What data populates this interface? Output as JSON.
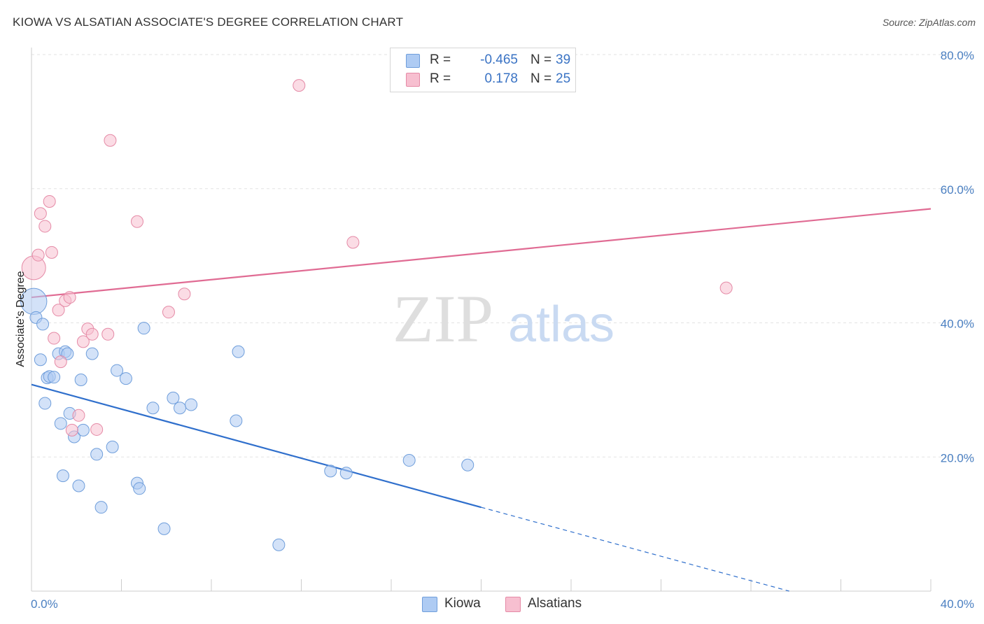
{
  "chart_data": {
    "type": "scatter",
    "title": "KIOWA VS ALSATIAN ASSOCIATE'S DEGREE CORRELATION CHART",
    "source": "Source: ZipAtlas.com",
    "watermark": {
      "zip": "ZIP",
      "atlas": "atlas"
    },
    "xlabel": "",
    "ylabel": "Associate's Degree",
    "xlim": [
      0,
      40
    ],
    "ylim": [
      0,
      80
    ],
    "x_tick_labels": [
      "0.0%",
      "40.0%"
    ],
    "y_ticks": [
      20,
      40,
      60,
      80
    ],
    "y_tick_labels": [
      "20.0%",
      "40.0%",
      "60.0%",
      "80.0%"
    ],
    "grid": true,
    "legend": {
      "position": "top-center",
      "entries": [
        {
          "r_label": "R =",
          "r_value": "-0.465",
          "n_label": "N =",
          "n_value": "39",
          "color": "#aecbf3"
        },
        {
          "r_label": "R =",
          "r_value": "0.178",
          "n_label": "N =",
          "n_value": "25",
          "color": "#f7bfd0"
        }
      ]
    },
    "series": [
      {
        "name": "Kiowa",
        "color": "#aecbf3",
        "stroke": "#6f9edb",
        "trend_color": "#2f6fcc",
        "trend": {
          "x0": 0,
          "y0": 30.8,
          "x1": 20,
          "y1": 12.5,
          "dash_to_x": 33.7,
          "dash_to_y": 0
        },
        "points": [
          [
            0.1,
            43.2,
            22
          ],
          [
            0.2,
            40.8,
            10
          ],
          [
            0.4,
            34.5,
            10
          ],
          [
            0.5,
            39.8,
            10
          ],
          [
            0.6,
            28.0,
            10
          ],
          [
            0.7,
            31.8,
            10
          ],
          [
            0.8,
            32.0,
            10
          ],
          [
            1.0,
            31.9,
            10
          ],
          [
            1.2,
            35.4,
            10
          ],
          [
            1.3,
            25.0,
            10
          ],
          [
            1.4,
            17.2,
            10
          ],
          [
            1.5,
            35.7,
            10
          ],
          [
            1.6,
            35.4,
            10
          ],
          [
            1.7,
            26.5,
            10
          ],
          [
            1.9,
            23.0,
            10
          ],
          [
            2.1,
            15.7,
            10
          ],
          [
            2.2,
            31.5,
            10
          ],
          [
            2.3,
            24.0,
            10
          ],
          [
            2.7,
            35.4,
            10
          ],
          [
            2.9,
            20.4,
            10
          ],
          [
            3.1,
            12.5,
            10
          ],
          [
            3.6,
            21.5,
            10
          ],
          [
            3.8,
            32.9,
            10
          ],
          [
            4.2,
            31.7,
            10
          ],
          [
            4.7,
            16.1,
            10
          ],
          [
            4.8,
            15.3,
            10
          ],
          [
            5.0,
            39.2,
            10
          ],
          [
            5.4,
            27.3,
            10
          ],
          [
            5.9,
            9.3,
            10
          ],
          [
            6.3,
            28.8,
            10
          ],
          [
            6.6,
            27.3,
            10
          ],
          [
            7.1,
            27.8,
            10
          ],
          [
            9.1,
            25.4,
            10
          ],
          [
            9.2,
            35.7,
            10
          ],
          [
            11.0,
            6.9,
            10
          ],
          [
            13.3,
            17.9,
            10
          ],
          [
            14.0,
            17.6,
            10
          ],
          [
            16.8,
            19.5,
            10
          ],
          [
            19.4,
            18.8,
            10
          ]
        ]
      },
      {
        "name": "Alsatians",
        "color": "#f7bfd0",
        "stroke": "#e58aa6",
        "trend_color": "#e06b93",
        "trend": {
          "x0": 0,
          "y0": 43.8,
          "x1": 40,
          "y1": 57.0
        },
        "points": [
          [
            0.1,
            48.2,
            20
          ],
          [
            0.3,
            50.1,
            10
          ],
          [
            0.4,
            56.3,
            10
          ],
          [
            0.6,
            54.4,
            10
          ],
          [
            0.8,
            58.1,
            10
          ],
          [
            0.9,
            50.5,
            10
          ],
          [
            1.0,
            37.7,
            10
          ],
          [
            1.2,
            41.9,
            10
          ],
          [
            1.3,
            34.2,
            10
          ],
          [
            1.5,
            43.3,
            10
          ],
          [
            1.7,
            43.8,
            10
          ],
          [
            1.8,
            24.0,
            10
          ],
          [
            2.1,
            26.2,
            10
          ],
          [
            2.3,
            37.2,
            10
          ],
          [
            2.5,
            39.1,
            10
          ],
          [
            2.7,
            38.3,
            10
          ],
          [
            2.9,
            24.1,
            10
          ],
          [
            3.4,
            38.3,
            10
          ],
          [
            3.5,
            67.2,
            10
          ],
          [
            4.7,
            55.1,
            10
          ],
          [
            6.1,
            41.6,
            10
          ],
          [
            6.8,
            44.3,
            10
          ],
          [
            11.9,
            75.4,
            10
          ],
          [
            14.3,
            52.0,
            10
          ],
          [
            30.9,
            45.2,
            10
          ]
        ]
      }
    ]
  }
}
